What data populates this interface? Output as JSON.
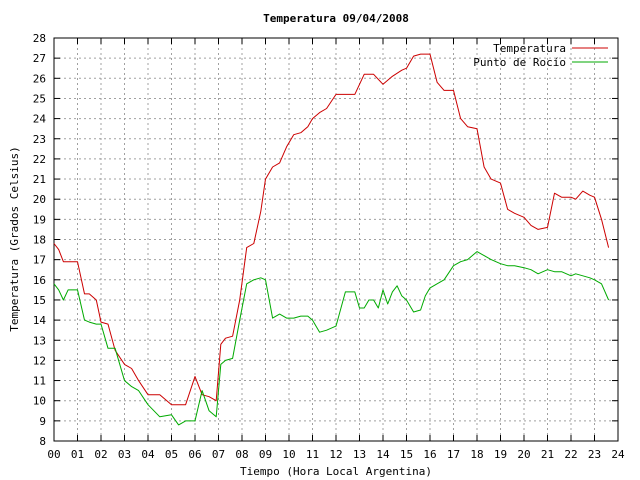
{
  "chart_data": {
    "type": "line",
    "title": "Temperatura 09/04/2008",
    "xlabel": "Tiempo (Hora Local Argentina)",
    "ylabel": "Temperatura (Grados Celsius)",
    "xlim": [
      0,
      24
    ],
    "ylim": [
      8,
      28
    ],
    "x_ticks": [
      "00",
      "01",
      "02",
      "03",
      "04",
      "05",
      "06",
      "07",
      "08",
      "09",
      "10",
      "11",
      "12",
      "13",
      "14",
      "15",
      "16",
      "17",
      "18",
      "19",
      "20",
      "21",
      "22",
      "23",
      "24"
    ],
    "y_ticks": [
      "8",
      "9",
      "10",
      "11",
      "12",
      "13",
      "14",
      "15",
      "16",
      "17",
      "18",
      "19",
      "20",
      "21",
      "22",
      "23",
      "24",
      "25",
      "26",
      "27",
      "28"
    ],
    "grid": true,
    "legend_position": "top-right",
    "series": [
      {
        "name": "Temperatura",
        "color": "#cc0000",
        "x": [
          0,
          0.2,
          0.4,
          0.6,
          1.0,
          1.3,
          1.5,
          1.8,
          2.0,
          2.3,
          2.6,
          3.0,
          3.3,
          3.6,
          4.0,
          4.5,
          5.0,
          5.3,
          5.6,
          6.0,
          6.3,
          6.6,
          6.9,
          7.1,
          7.3,
          7.6,
          7.9,
          8.2,
          8.5,
          8.8,
          9.0,
          9.3,
          9.6,
          9.9,
          10.2,
          10.5,
          10.8,
          11.0,
          11.3,
          11.6,
          12.0,
          12.4,
          12.8,
          13.2,
          13.6,
          14.0,
          14.4,
          14.8,
          15.0,
          15.3,
          15.6,
          16.0,
          16.3,
          16.6,
          17.0,
          17.3,
          17.6,
          18.0,
          18.3,
          18.6,
          19.0,
          19.3,
          19.6,
          20.0,
          20.3,
          20.6,
          21.0,
          21.3,
          21.6,
          22.0,
          22.2,
          22.5,
          22.8,
          23.0,
          23.3,
          23.6
        ],
        "values": [
          17.8,
          17.5,
          16.9,
          16.9,
          16.9,
          15.3,
          15.3,
          15.0,
          13.9,
          13.8,
          12.5,
          11.8,
          11.6,
          11.0,
          10.3,
          10.3,
          9.8,
          9.8,
          9.8,
          11.2,
          10.3,
          10.2,
          10.0,
          12.8,
          13.1,
          13.2,
          15.0,
          17.6,
          17.8,
          19.4,
          21.0,
          21.6,
          21.8,
          22.6,
          23.2,
          23.3,
          23.6,
          24.0,
          24.3,
          24.5,
          25.2,
          25.2,
          25.2,
          26.2,
          26.2,
          25.7,
          26.1,
          26.4,
          26.5,
          27.1,
          27.2,
          27.2,
          25.8,
          25.4,
          25.4,
          24.0,
          23.6,
          23.5,
          21.6,
          21.0,
          20.8,
          19.5,
          19.3,
          19.1,
          18.7,
          18.5,
          18.6,
          20.3,
          20.1,
          20.1,
          20.0,
          20.4,
          20.2,
          20.1,
          19.0,
          17.6
        ]
      },
      {
        "name": "Punto de Rocío",
        "color": "#00aa00",
        "x": [
          0,
          0.2,
          0.4,
          0.6,
          1.0,
          1.3,
          1.5,
          1.8,
          2.0,
          2.3,
          2.6,
          3.0,
          3.3,
          3.6,
          4.0,
          4.5,
          5.0,
          5.3,
          5.6,
          6.0,
          6.3,
          6.6,
          6.9,
          7.1,
          7.3,
          7.6,
          7.9,
          8.2,
          8.5,
          8.8,
          9.0,
          9.3,
          9.6,
          9.9,
          10.2,
          10.5,
          10.8,
          11.0,
          11.3,
          11.6,
          12.0,
          12.4,
          12.8,
          13.0,
          13.2,
          13.4,
          13.6,
          13.8,
          14.0,
          14.2,
          14.4,
          14.6,
          14.8,
          15.0,
          15.3,
          15.6,
          15.8,
          16.0,
          16.3,
          16.6,
          17.0,
          17.3,
          17.6,
          18.0,
          18.3,
          18.6,
          19.0,
          19.3,
          19.6,
          20.0,
          20.3,
          20.6,
          21.0,
          21.3,
          21.6,
          22.0,
          22.2,
          22.5,
          22.8,
          23.0,
          23.3,
          23.6
        ],
        "values": [
          15.8,
          15.5,
          15.0,
          15.5,
          15.5,
          14.0,
          13.9,
          13.8,
          13.8,
          12.6,
          12.6,
          11.0,
          10.7,
          10.5,
          9.8,
          9.2,
          9.3,
          8.8,
          9.0,
          9.0,
          10.5,
          9.5,
          9.2,
          11.8,
          12.0,
          12.1,
          14.0,
          15.8,
          16.0,
          16.1,
          16.0,
          14.1,
          14.3,
          14.1,
          14.1,
          14.2,
          14.2,
          14.0,
          13.4,
          13.5,
          13.7,
          15.4,
          15.4,
          14.6,
          14.6,
          15.0,
          15.0,
          14.6,
          15.5,
          14.8,
          15.4,
          15.7,
          15.2,
          15.0,
          14.4,
          14.5,
          15.2,
          15.6,
          15.8,
          16.0,
          16.7,
          16.9,
          17.0,
          17.4,
          17.2,
          17.0,
          16.8,
          16.7,
          16.7,
          16.6,
          16.5,
          16.3,
          16.5,
          16.4,
          16.4,
          16.2,
          16.3,
          16.2,
          16.1,
          16.0,
          15.8,
          15.0
        ]
      }
    ]
  }
}
